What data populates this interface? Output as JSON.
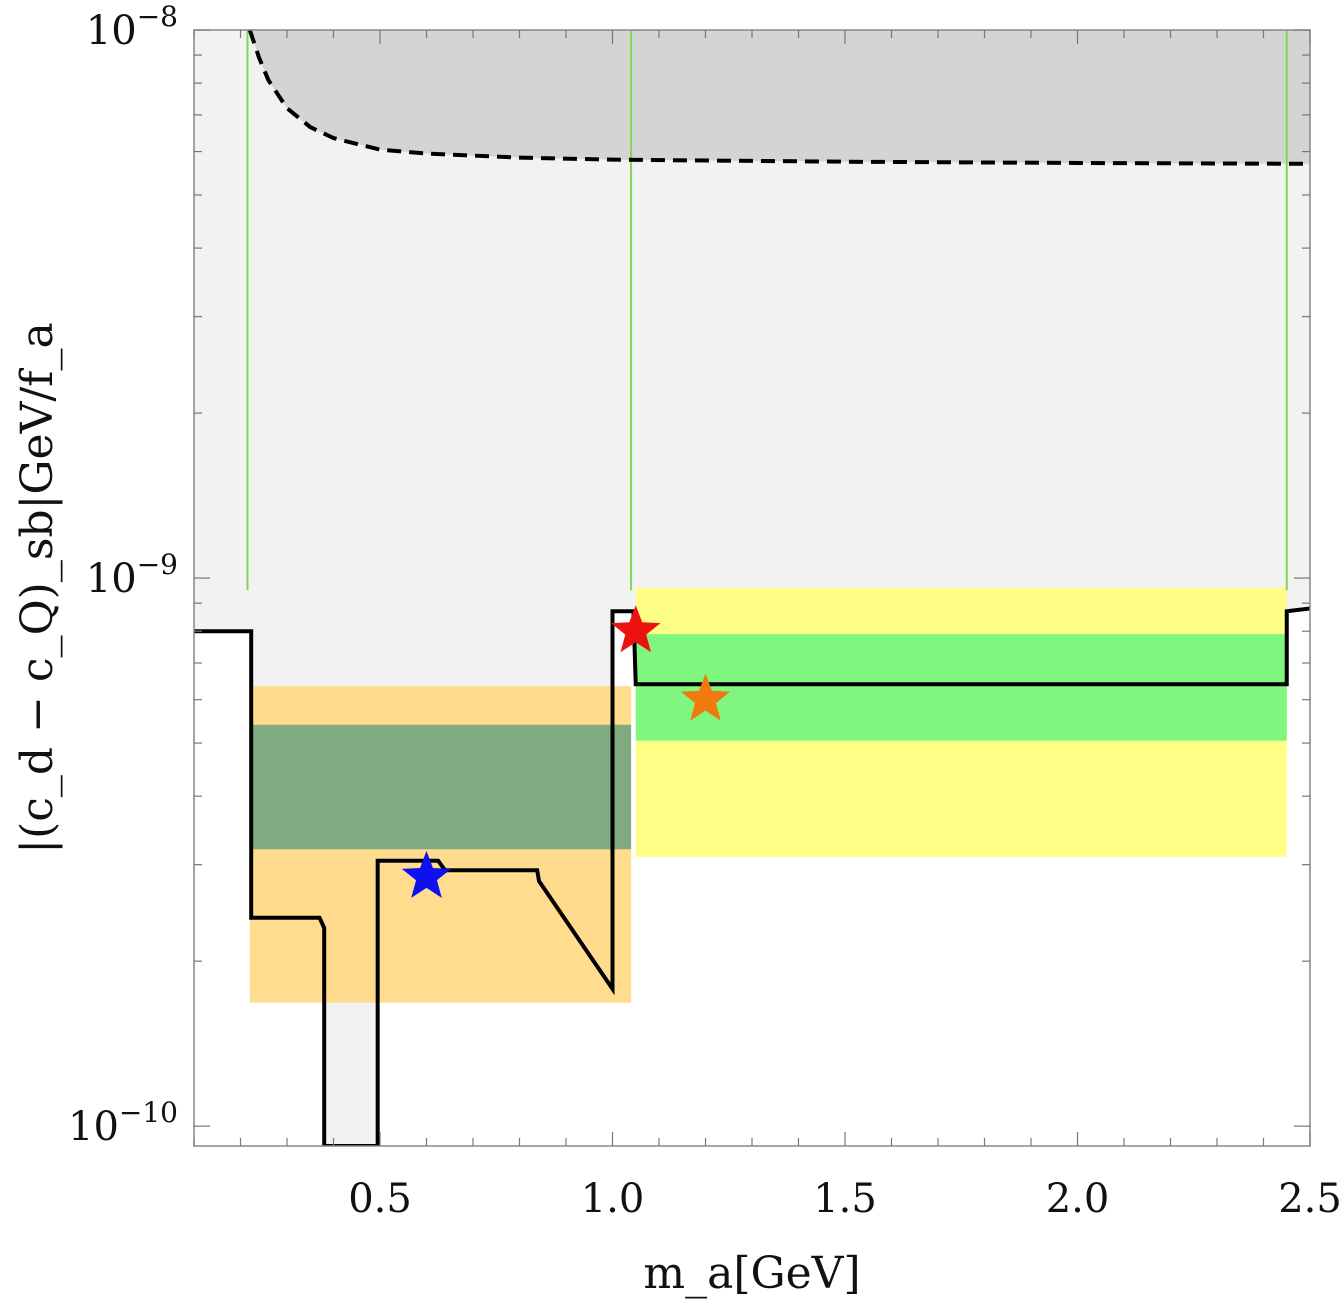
{
  "chart_data": {
    "type": "area",
    "title": "",
    "xlabel": "m_a[GeV]",
    "ylabel": "|(c_d − c_Q)_sb|GeV/f_a",
    "x_range": [
      0.1,
      2.5
    ],
    "y_range": [
      9.2e-11,
      1e-08
    ],
    "y_scale": "log",
    "grid": false,
    "x_ticks": [
      0.5,
      1.0,
      1.5,
      2.0,
      2.5
    ],
    "x_tick_labels": [
      "0.5",
      "1.0",
      "1.5",
      "2.0",
      "2.5"
    ],
    "y_ticks": [
      {
        "value": 1e-08,
        "base": "10",
        "exp": "−8"
      },
      {
        "value": 1e-09,
        "base": "10",
        "exp": "−9"
      },
      {
        "value": 1e-10,
        "base": "10",
        "exp": "−10"
      }
    ],
    "regions": [
      {
        "fill": "#d4d4d4",
        "upper": "top",
        "lower_curve": "dashed-bound"
      },
      {
        "fill": "#f2f2f2",
        "upper": "top",
        "lower_curve": "solid-bound"
      }
    ],
    "dashed_bound": {
      "color": "#000000",
      "x": [
        0.22,
        0.24,
        0.26,
        0.3,
        0.35,
        0.4,
        0.5,
        0.6,
        0.8,
        1.0,
        1.5,
        2.0,
        2.5
      ],
      "y": [
        1e-08,
        8.9e-09,
        8.1e-09,
        7.2e-09,
        6.65e-09,
        6.35e-09,
        6.05e-09,
        5.95e-09,
        5.85e-09,
        5.8e-09,
        5.75e-09,
        5.72e-09,
        5.7e-09
      ]
    },
    "solid_bound": {
      "color": "#000000",
      "x": [
        0.1,
        0.223,
        0.223,
        0.37,
        0.38,
        0.38,
        0.495,
        0.495,
        0.625,
        0.64,
        0.838,
        0.842,
        1.0,
        1.0,
        1.045,
        1.05,
        2.45,
        2.45,
        2.5
      ],
      "y": [
        8e-10,
        8e-10,
        2.4e-10,
        2.4e-10,
        2.3e-10,
        9.2e-11,
        9.2e-11,
        3.05e-10,
        3.05e-10,
        2.93e-10,
        2.93e-10,
        2.8e-10,
        1.78e-10,
        8.7e-10,
        8.7e-10,
        6.4e-10,
        6.4e-10,
        8.7e-10,
        8.8e-10
      ]
    },
    "bands": [
      {
        "fill": "#ffd882",
        "x": [
          0.22,
          1.04
        ],
        "y": [
          1.68e-10,
          6.35e-10
        ],
        "opacity": 0.9
      },
      {
        "fill": "#7eac80",
        "x": [
          0.22,
          1.04
        ],
        "y": [
          3.2e-10,
          5.4e-10
        ],
        "opacity": 1.0
      },
      {
        "fill": "#ffff7a",
        "x": [
          1.05,
          2.45
        ],
        "y": [
          3.1e-10,
          9.6e-10
        ],
        "opacity": 0.9
      },
      {
        "fill": "#7ff77e",
        "x": [
          1.05,
          2.45
        ],
        "y": [
          5.05e-10,
          7.9e-10
        ],
        "opacity": 1.0
      }
    ],
    "green_lines": {
      "color": "#7fd950",
      "x": [
        0.215,
        1.04,
        2.45
      ]
    },
    "markers": [
      {
        "shape": "star",
        "color": "#1010ee",
        "x": 0.6,
        "y": 2.85e-10
      },
      {
        "shape": "star",
        "color": "#ee1111",
        "x": 1.05,
        "y": 8e-10
      },
      {
        "shape": "star",
        "color": "#f07a10",
        "x": 1.2,
        "y": 6e-10
      }
    ]
  }
}
